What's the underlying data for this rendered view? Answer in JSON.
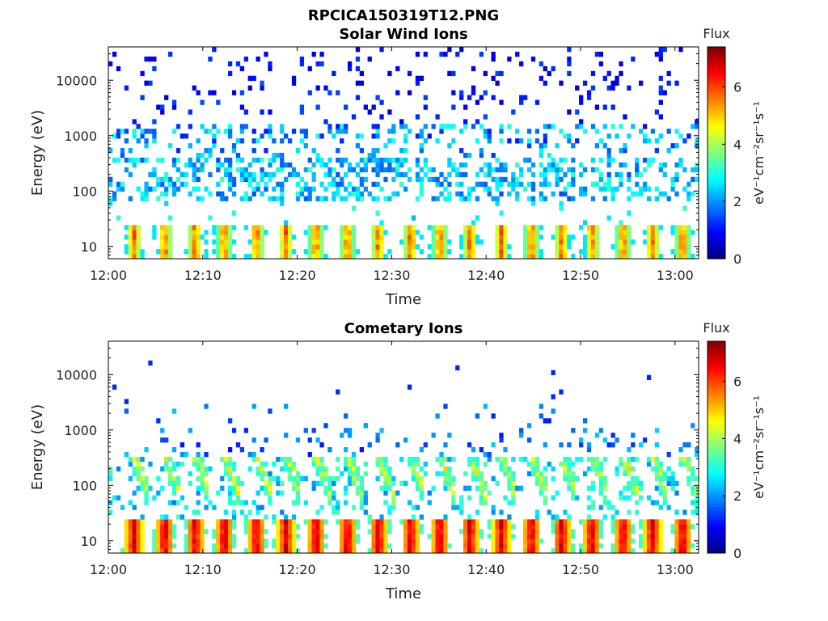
{
  "figure": {
    "main_title": "RPCICA150319T12.PNG"
  },
  "chart_data": [
    {
      "type": "heatmap",
      "title": "Solar Wind Ions",
      "xlabel": "Time",
      "ylabel": "Energy (eV)",
      "x_tick_labels": [
        "12:00",
        "12:10",
        "12:20",
        "12:30",
        "12:40",
        "12:50",
        "13:00"
      ],
      "x_tick_minutes": [
        0,
        10,
        20,
        30,
        40,
        50,
        60
      ],
      "xlim_minutes": [
        0,
        62.5
      ],
      "y_scale": "log",
      "ylim": [
        6,
        40000
      ],
      "y_ticks": [
        10,
        100,
        1000,
        10000
      ],
      "y_tick_labels": [
        "10",
        "100",
        "1000",
        "10000"
      ],
      "colorbar": {
        "title": "Flux",
        "unit_label": "eV⁻¹cm⁻²sr⁻¹s⁻¹",
        "range": [
          0,
          7.4
        ],
        "ticks": [
          0,
          2,
          4,
          6
        ],
        "tick_labels": [
          "0",
          "2",
          "4",
          "6"
        ],
        "colormap": "jet"
      },
      "pulse_minutes": [
        2.7,
        6,
        9.2,
        12.3,
        15.7,
        18.8,
        22,
        25.3,
        28.6,
        32,
        35.1,
        38.3,
        41.6,
        44.8,
        48,
        51.2,
        54.5,
        57.6,
        60.8
      ],
      "features": [
        {
          "description": "pulsed low-energy bursts",
          "energy_range_eV": [
            6,
            25
          ],
          "flux_range": [
            2,
            6.5
          ]
        },
        {
          "description": "main solar wind band",
          "energy_range_eV": [
            80,
            400
          ],
          "flux_range": [
            1.5,
            3.2
          ]
        },
        {
          "description": "alpha / secondary band",
          "energy_range_eV": [
            700,
            1600
          ],
          "flux_range": [
            1,
            3
          ]
        },
        {
          "description": "sparse high-energy background",
          "energy_range_eV": [
            2000,
            40000
          ],
          "flux_range": [
            0.5,
            1.5
          ]
        }
      ]
    },
    {
      "type": "heatmap",
      "title": "Cometary Ions",
      "xlabel": "Time",
      "ylabel": "Energy (eV)",
      "x_tick_labels": [
        "12:00",
        "12:10",
        "12:20",
        "12:30",
        "12:40",
        "12:50",
        "13:00"
      ],
      "x_tick_minutes": [
        0,
        10,
        20,
        30,
        40,
        50,
        60
      ],
      "xlim_minutes": [
        0,
        62.5
      ],
      "y_scale": "log",
      "ylim": [
        6,
        40000
      ],
      "y_ticks": [
        10,
        100,
        1000,
        10000
      ],
      "y_tick_labels": [
        "10",
        "100",
        "1000",
        "10000"
      ],
      "colorbar": {
        "title": "Flux",
        "unit_label": "eV⁻¹cm⁻²sr⁻¹s⁻¹",
        "range": [
          0,
          7.4
        ],
        "ticks": [
          0,
          2,
          4,
          6
        ],
        "tick_labels": [
          "0",
          "2",
          "4",
          "6"
        ],
        "colormap": "jet"
      },
      "pulse_minutes": [
        2.7,
        6,
        9.2,
        12.3,
        15.7,
        18.8,
        22,
        25.3,
        28.6,
        32,
        35.1,
        38.3,
        41.6,
        44.8,
        48,
        51.2,
        54.5,
        57.6,
        60.8
      ],
      "features": [
        {
          "description": "intense pulsed low-energy bursts",
          "energy_range_eV": [
            6,
            25
          ],
          "flux_range": [
            4.5,
            7.2
          ]
        },
        {
          "description": "dispersed cometary ion streaks",
          "energy_range_eV": [
            30,
            300
          ],
          "flux_range": [
            2.5,
            4.8
          ]
        },
        {
          "description": "sparse upper background",
          "energy_range_eV": [
            300,
            3000
          ],
          "flux_range": [
            1,
            2.5
          ]
        }
      ]
    }
  ]
}
